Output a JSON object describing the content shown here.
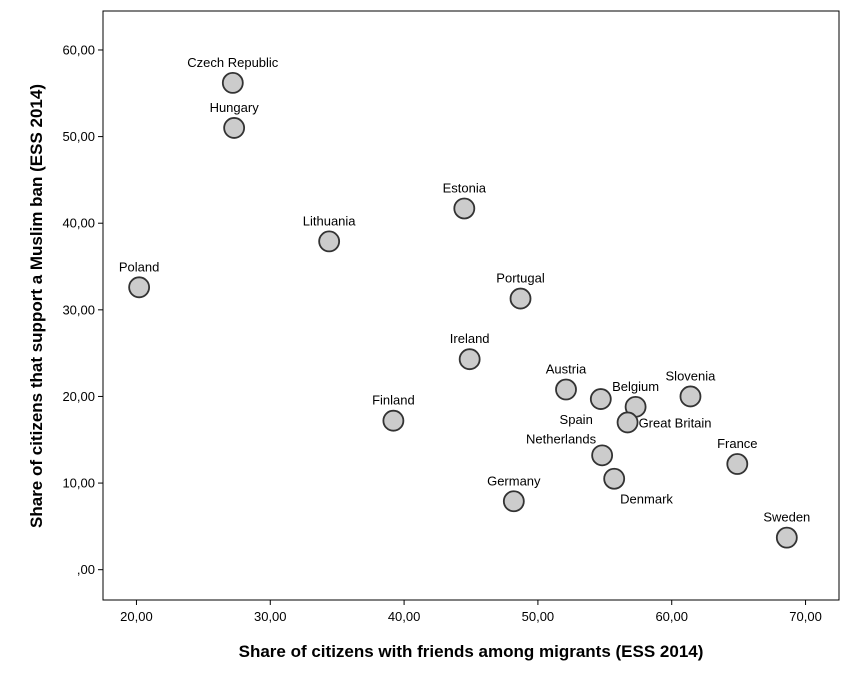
{
  "chart_data": {
    "type": "scatter",
    "title": "",
    "xlabel": "Share of citizens with friends among migrants (ESS 2014)",
    "ylabel": "Share of citizens that support a Muslim ban (ESS 2014)",
    "xlim": [
      17.5,
      72.5
    ],
    "ylim": [
      -3.5,
      64.5
    ],
    "xticks": [
      20,
      30,
      40,
      50,
      60,
      70
    ],
    "xtick_labels": [
      "20,00",
      "30,00",
      "40,00",
      "50,00",
      "60,00",
      "70,00"
    ],
    "yticks": [
      0,
      10,
      20,
      30,
      40,
      50,
      60
    ],
    "ytick_labels": [
      ",00",
      "10,00",
      "20,00",
      "30,00",
      "40,00",
      "50,00",
      "60,00"
    ],
    "grid": false,
    "marker_fill": "#cccccc",
    "marker_stroke": "#333333",
    "points": [
      {
        "label": "Czech Republic",
        "x": 27.2,
        "y": 56.2,
        "label_pos": "above"
      },
      {
        "label": "Hungary",
        "x": 27.3,
        "y": 51.0,
        "label_pos": "above"
      },
      {
        "label": "Estonia",
        "x": 44.5,
        "y": 41.7,
        "label_pos": "above"
      },
      {
        "label": "Lithuania",
        "x": 34.4,
        "y": 37.9,
        "label_pos": "above"
      },
      {
        "label": "Poland",
        "x": 20.2,
        "y": 32.6,
        "label_pos": "above"
      },
      {
        "label": "Portugal",
        "x": 48.7,
        "y": 31.3,
        "label_pos": "above"
      },
      {
        "label": "Ireland",
        "x": 44.9,
        "y": 24.3,
        "label_pos": "above"
      },
      {
        "label": "Austria",
        "x": 52.1,
        "y": 20.8,
        "label_pos": "above"
      },
      {
        "label": "Belgium",
        "x": 57.3,
        "y": 18.8,
        "label_pos": "above"
      },
      {
        "label": "Slovenia",
        "x": 61.4,
        "y": 20.0,
        "label_pos": "above"
      },
      {
        "label": "Spain",
        "x": 54.7,
        "y": 19.7,
        "label_pos": "below-left"
      },
      {
        "label": "Great Britain",
        "x": 56.7,
        "y": 17.0,
        "label_pos": "right"
      },
      {
        "label": "Finland",
        "x": 39.2,
        "y": 17.2,
        "label_pos": "above"
      },
      {
        "label": "Netherlands",
        "x": 54.8,
        "y": 13.2,
        "label_pos": "above-left"
      },
      {
        "label": "France",
        "x": 64.9,
        "y": 12.2,
        "label_pos": "above"
      },
      {
        "label": "Denmark",
        "x": 55.7,
        "y": 10.5,
        "label_pos": "below-right"
      },
      {
        "label": "Germany",
        "x": 48.2,
        "y": 7.9,
        "label_pos": "above"
      },
      {
        "label": "Sweden",
        "x": 68.6,
        "y": 3.7,
        "label_pos": "above"
      }
    ]
  }
}
